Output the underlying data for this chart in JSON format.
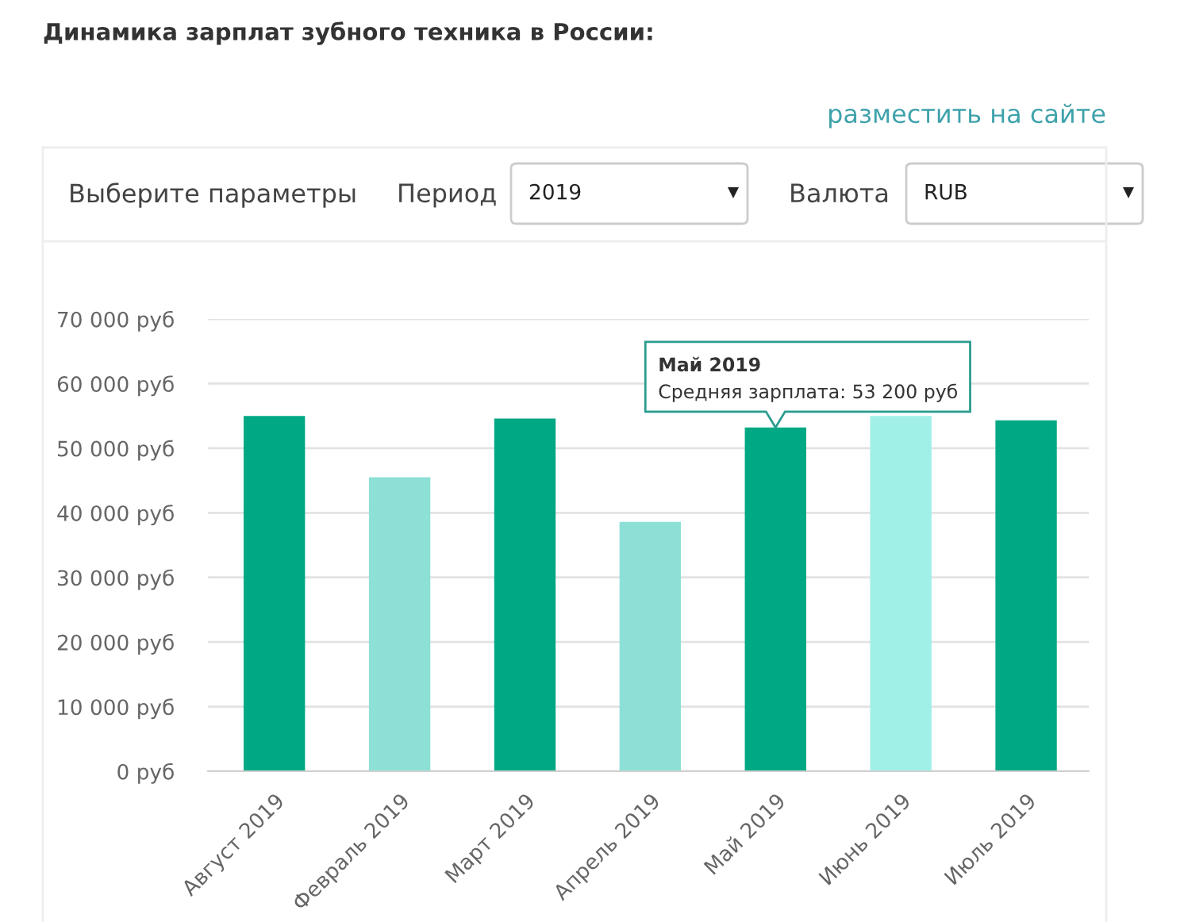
{
  "chart_data": {
    "type": "bar",
    "title": "Динамика зарплат зубного техника в России:",
    "categories": [
      "Август 2019",
      "Февраль 2019",
      "Март 2019",
      "Апрель 2019",
      "Май 2019",
      "Июнь 2019",
      "Июль 2019"
    ],
    "values": [
      55000,
      45500,
      54600,
      38600,
      53200,
      55000,
      54300
    ],
    "colors": [
      "#00a884",
      "#8ce0d6",
      "#00a884",
      "#8ce0d6",
      "#00a884",
      "#a0f0e8",
      "#00a884"
    ],
    "ylim": [
      0,
      70000
    ],
    "yticks": [
      {
        "value": 0,
        "label": "0 руб"
      },
      {
        "value": 10000,
        "label": "10 000 руб"
      },
      {
        "value": 20000,
        "label": "20 000 руб"
      },
      {
        "value": 30000,
        "label": "30 000 руб"
      },
      {
        "value": 40000,
        "label": "40 000 руб"
      },
      {
        "value": 50000,
        "label": "50 000 руб"
      },
      {
        "value": 60000,
        "label": "60 000 руб"
      },
      {
        "value": 70000,
        "label": "70 000 руб"
      }
    ],
    "grid": "y",
    "annotations": [
      "разместить на сайте",
      "Выберите параметры",
      "Период",
      "2019",
      "Валюта",
      "RUB",
      {
        "text": "Май 2019",
        "x": "Май 2019",
        "y": 53200
      },
      {
        "text": "Средняя зарплата: 53 200 руб",
        "x": "Май 2019",
        "y": 53200
      }
    ]
  }
}
